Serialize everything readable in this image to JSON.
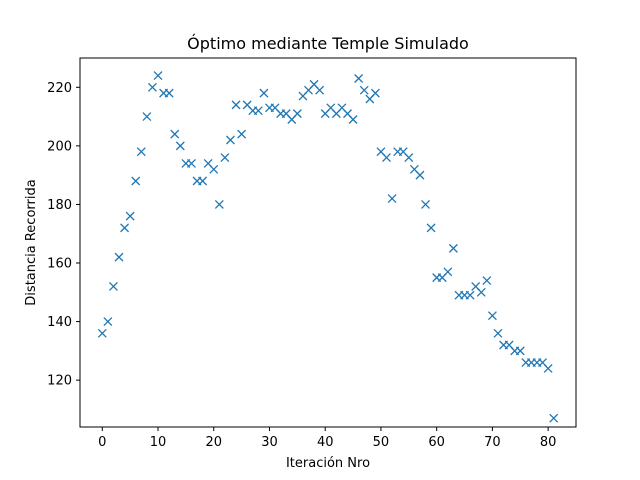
{
  "chart_data": {
    "type": "scatter",
    "title": "Óptimo mediante Temple Simulado",
    "xlabel": "Iteración Nro",
    "ylabel": "Distancia Recorrida",
    "xlim": [
      -4,
      85
    ],
    "ylim": [
      104,
      230
    ],
    "xticks": [
      0,
      10,
      20,
      30,
      40,
      50,
      60,
      70,
      80
    ],
    "yticks": [
      120,
      140,
      160,
      180,
      200,
      220
    ],
    "grid": false,
    "marker": "x",
    "color": "#1f77b4",
    "series": [
      {
        "x": [
          0,
          1,
          2,
          3,
          4,
          5,
          6,
          7,
          8,
          9,
          10,
          11,
          12,
          13,
          14,
          15,
          16,
          17,
          18,
          19,
          20,
          21,
          22,
          23,
          24,
          25,
          26,
          27,
          28,
          29,
          30,
          31,
          32,
          33,
          34,
          35,
          36,
          37,
          38,
          39,
          40,
          41,
          42,
          43,
          44,
          45,
          46,
          47,
          48,
          49,
          50,
          51,
          52,
          53,
          54,
          55,
          56,
          57,
          58,
          59,
          60,
          61,
          62,
          63,
          64,
          65,
          66,
          67,
          68,
          69,
          70,
          71,
          72,
          73,
          74,
          75,
          76,
          77,
          78,
          79,
          80,
          81
        ],
        "y": [
          136,
          140,
          152,
          162,
          172,
          176,
          188,
          198,
          210,
          220,
          224,
          218,
          218,
          204,
          200,
          194,
          194,
          188,
          188,
          194,
          192,
          180,
          196,
          202,
          214,
          204,
          214,
          212,
          212,
          218,
          213,
          213,
          211,
          211,
          209,
          211,
          217,
          219,
          221,
          219,
          211,
          213,
          211,
          213,
          211,
          209,
          223,
          219,
          216,
          218,
          198,
          196,
          182,
          198,
          198,
          196,
          192,
          190,
          180,
          172,
          155,
          155,
          157,
          165,
          149,
          149,
          149,
          152,
          150,
          154,
          142,
          136,
          132,
          132,
          130,
          130,
          126,
          126,
          126,
          126,
          124,
          107
        ]
      }
    ]
  }
}
